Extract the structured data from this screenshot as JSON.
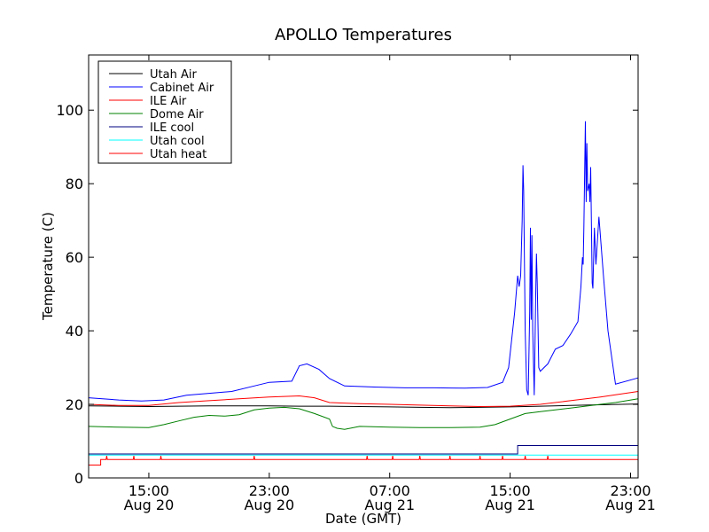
{
  "chart_data": {
    "type": "line",
    "title": "APOLLO Temperatures",
    "xlabel": "Date (GMT)",
    "ylabel": "Temperature (C)",
    "x_unit": "hours, Aug 20 00:00 GMT = 0",
    "xlim": [
      11.0,
      47.5
    ],
    "ylim": [
      0,
      115
    ],
    "x_ticks": [
      {
        "x": 15,
        "line1": "15:00",
        "line2": "Aug 20"
      },
      {
        "x": 23,
        "line1": "23:00",
        "line2": "Aug 20"
      },
      {
        "x": 31,
        "line1": "07:00",
        "line2": "Aug 21"
      },
      {
        "x": 39,
        "line1": "15:00",
        "line2": "Aug 21"
      },
      {
        "x": 47,
        "line1": "23:00",
        "line2": "Aug 21"
      }
    ],
    "y_ticks": [
      0,
      20,
      40,
      60,
      80,
      100
    ],
    "legend_position": "top-left",
    "series": [
      {
        "name": "Utah Air",
        "color": "#000000",
        "points": [
          [
            11.0,
            19.6
          ],
          [
            13.0,
            19.5
          ],
          [
            15.0,
            19.4
          ],
          [
            17.0,
            19.5
          ],
          [
            19.0,
            19.6
          ],
          [
            21.0,
            19.6
          ],
          [
            23.0,
            19.6
          ],
          [
            25.0,
            19.5
          ],
          [
            27.0,
            19.5
          ],
          [
            29.0,
            19.4
          ],
          [
            31.0,
            19.3
          ],
          [
            33.0,
            19.2
          ],
          [
            35.0,
            19.1
          ],
          [
            37.0,
            19.2
          ],
          [
            39.0,
            19.3
          ],
          [
            41.0,
            19.5
          ],
          [
            43.0,
            19.7
          ],
          [
            45.0,
            19.9
          ],
          [
            47.5,
            20.1
          ]
        ]
      },
      {
        "name": "Cabinet Air",
        "color": "#0000ff",
        "points": [
          [
            11.0,
            21.8
          ],
          [
            13.0,
            21.2
          ],
          [
            14.5,
            20.9
          ],
          [
            16.0,
            21.2
          ],
          [
            17.5,
            22.5
          ],
          [
            19.0,
            23.0
          ],
          [
            20.5,
            23.5
          ],
          [
            22.0,
            25.0
          ],
          [
            23.0,
            26.0
          ],
          [
            24.5,
            26.3
          ],
          [
            25.0,
            30.5
          ],
          [
            25.5,
            31.0
          ],
          [
            26.3,
            29.5
          ],
          [
            27.0,
            27.0
          ],
          [
            28.0,
            25.0
          ],
          [
            30.0,
            24.7
          ],
          [
            32.0,
            24.5
          ],
          [
            34.0,
            24.5
          ],
          [
            36.0,
            24.4
          ],
          [
            37.5,
            24.6
          ],
          [
            38.5,
            26.0
          ],
          [
            38.9,
            30.0
          ],
          [
            39.3,
            45.0
          ],
          [
            39.5,
            55.0
          ],
          [
            39.6,
            52.0
          ],
          [
            39.7,
            55.0
          ],
          [
            39.8,
            70.0
          ],
          [
            39.85,
            85.0
          ],
          [
            39.9,
            78.0
          ],
          [
            40.0,
            40.0
          ],
          [
            40.1,
            24.0
          ],
          [
            40.2,
            22.5
          ],
          [
            40.3,
            45.0
          ],
          [
            40.35,
            68.0
          ],
          [
            40.4,
            43.0
          ],
          [
            40.45,
            66.0
          ],
          [
            40.5,
            40.0
          ],
          [
            40.6,
            22.5
          ],
          [
            40.7,
            50.0
          ],
          [
            40.75,
            61.0
          ],
          [
            40.8,
            53.0
          ],
          [
            40.9,
            30.0
          ],
          [
            41.0,
            29.0
          ],
          [
            41.5,
            31.0
          ],
          [
            42.0,
            35.0
          ],
          [
            42.5,
            36.0
          ],
          [
            43.0,
            39.0
          ],
          [
            43.5,
            42.5
          ],
          [
            43.7,
            52.0
          ],
          [
            43.8,
            60.0
          ],
          [
            43.85,
            58.0
          ],
          [
            43.9,
            68.0
          ],
          [
            44.0,
            97.0
          ],
          [
            44.05,
            75.0
          ],
          [
            44.1,
            91.0
          ],
          [
            44.15,
            78.0
          ],
          [
            44.25,
            80.0
          ],
          [
            44.3,
            75.0
          ],
          [
            44.35,
            84.5
          ],
          [
            44.45,
            53.0
          ],
          [
            44.5,
            51.5
          ],
          [
            44.6,
            68.0
          ],
          [
            44.7,
            58.0
          ],
          [
            44.9,
            71.0
          ],
          [
            45.2,
            55.0
          ],
          [
            45.5,
            40.0
          ],
          [
            46.0,
            25.5
          ],
          [
            47.5,
            27.2
          ]
        ]
      },
      {
        "name": "ILE Air",
        "color": "#ff0000",
        "points": [
          [
            11.0,
            20.0
          ],
          [
            13.0,
            19.7
          ],
          [
            15.0,
            19.7
          ],
          [
            17.0,
            20.5
          ],
          [
            19.0,
            21.0
          ],
          [
            21.0,
            21.5
          ],
          [
            23.0,
            22.0
          ],
          [
            25.0,
            22.3
          ],
          [
            26.0,
            21.8
          ],
          [
            27.0,
            20.5
          ],
          [
            29.0,
            20.2
          ],
          [
            31.0,
            20.0
          ],
          [
            33.0,
            19.8
          ],
          [
            35.0,
            19.6
          ],
          [
            37.0,
            19.4
          ],
          [
            39.0,
            19.5
          ],
          [
            41.0,
            20.0
          ],
          [
            43.0,
            21.0
          ],
          [
            45.0,
            22.0
          ],
          [
            47.5,
            23.5
          ]
        ]
      },
      {
        "name": "Dome Air",
        "color": "#008000",
        "points": [
          [
            11.0,
            14.0
          ],
          [
            13.0,
            13.8
          ],
          [
            15.0,
            13.7
          ],
          [
            16.0,
            14.5
          ],
          [
            17.0,
            15.5
          ],
          [
            18.0,
            16.5
          ],
          [
            19.0,
            17.0
          ],
          [
            20.0,
            16.8
          ],
          [
            21.0,
            17.2
          ],
          [
            22.0,
            18.5
          ],
          [
            23.0,
            19.0
          ],
          [
            24.0,
            19.2
          ],
          [
            25.0,
            18.8
          ],
          [
            26.0,
            17.5
          ],
          [
            27.0,
            16.0
          ],
          [
            27.2,
            14.0
          ],
          [
            27.5,
            13.5
          ],
          [
            28.0,
            13.2
          ],
          [
            29.0,
            14.0
          ],
          [
            31.0,
            13.8
          ],
          [
            33.0,
            13.7
          ],
          [
            35.0,
            13.7
          ],
          [
            37.0,
            13.8
          ],
          [
            38.0,
            14.5
          ],
          [
            39.0,
            16.0
          ],
          [
            40.0,
            17.5
          ],
          [
            41.0,
            18.0
          ],
          [
            42.0,
            18.5
          ],
          [
            43.0,
            19.0
          ],
          [
            44.0,
            19.5
          ],
          [
            45.0,
            20.0
          ],
          [
            46.0,
            20.5
          ],
          [
            47.5,
            21.5
          ]
        ]
      },
      {
        "name": "ILE cool",
        "color": "#000080",
        "points": [
          [
            11.0,
            6.5
          ],
          [
            39.5,
            6.5
          ],
          [
            39.5,
            8.8
          ],
          [
            47.5,
            8.8
          ]
        ]
      },
      {
        "name": "Utah cool",
        "color": "#00ffff",
        "points": [
          [
            11.0,
            6.2
          ],
          [
            47.5,
            6.2
          ]
        ]
      },
      {
        "name": "Utah heat",
        "color": "#ff0000",
        "points": [
          [
            11.0,
            3.5
          ],
          [
            11.8,
            3.5
          ],
          [
            11.8,
            5.0
          ],
          [
            47.5,
            5.0
          ]
        ],
        "spikes_x": [
          12.2,
          14.0,
          15.8,
          22.0,
          29.5,
          31.2,
          33.0,
          35.0,
          37.0,
          38.5,
          40.0,
          41.5
        ],
        "spike_top": 6.0
      }
    ]
  }
}
